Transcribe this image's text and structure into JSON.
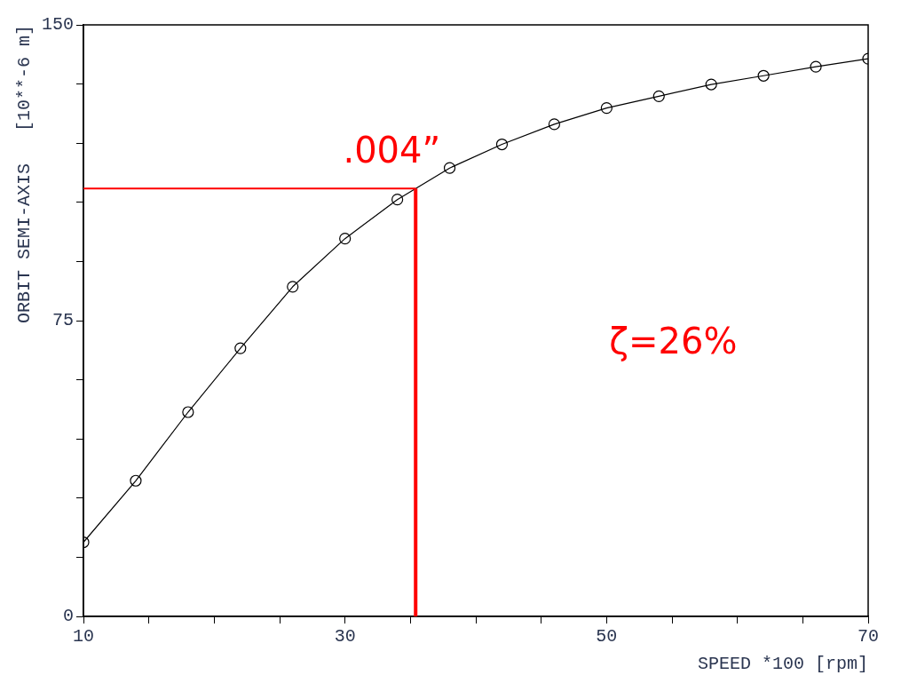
{
  "chart_data": {
    "type": "line",
    "xlabel": "SPEED *100 [rpm]",
    "ylabel": "ORBIT SEMI-AXIS   [10**-6 m]",
    "x": [
      10,
      14,
      18,
      22,
      26,
      30,
      34,
      38,
      42,
      46,
      50,
      54,
      58,
      62,
      66,
      70
    ],
    "series": [
      {
        "color": "#000000",
        "values": [
          18.8,
          34.4,
          51.8,
          68.0,
          83.6,
          95.8,
          105.7,
          113.7,
          119.7,
          124.8,
          128.9,
          131.9,
          134.9,
          137.1,
          139.4,
          141.4
        ]
      }
    ],
    "xlim": [
      10,
      70
    ],
    "xticks": [
      10,
      {
        "value": 15,
        "label": null
      },
      {
        "value": 20,
        "label": null
      },
      {
        "value": 25,
        "label": null
      },
      30,
      {
        "value": 35,
        "label": null
      },
      {
        "value": 40,
        "label": null
      },
      {
        "value": 45,
        "label": null
      },
      50,
      {
        "value": 55,
        "label": null
      },
      {
        "value": 60,
        "label": null
      },
      {
        "value": 65,
        "label": null
      },
      70
    ],
    "ylim": [
      0,
      150
    ],
    "yticks": [
      0,
      {
        "value": 15,
        "label": null
      },
      {
        "value": 30,
        "label": null
      },
      {
        "value": 45,
        "label": null
      },
      {
        "value": 60,
        "label": null
      },
      75,
      {
        "value": 90,
        "label": null
      },
      {
        "value": 105,
        "label": null
      },
      {
        "value": 120,
        "label": null
      },
      {
        "value": 135,
        "label": null
      },
      150
    ],
    "ref_lines": [
      {
        "axis": "y",
        "value": 108.5,
        "label": ".004”",
        "color": "#ff0000"
      },
      {
        "axis": "x",
        "value": 35.4,
        "color": "#ff0000"
      }
    ],
    "annotations": [
      "ζ=26%"
    ],
    "grid": false,
    "legend": false,
    "marker": "circle",
    "line_style": "solid"
  }
}
